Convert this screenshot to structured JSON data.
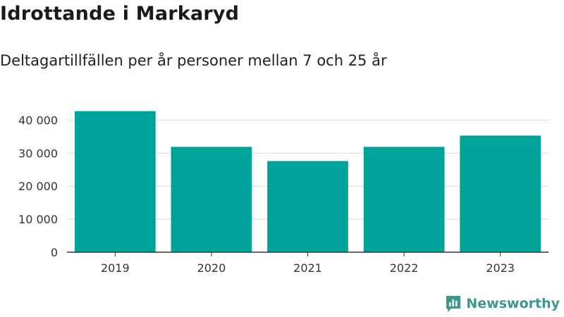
{
  "header": {
    "title": "Idrottande i Markaryd",
    "subtitle": "Deltagartillfällen per år personer mellan 7 och 25 år"
  },
  "brand": {
    "name": "Newsworthy",
    "icon": "newsworthy-logo-icon",
    "color": "#3e968c"
  },
  "colors": {
    "bar": "#00a39a",
    "grid": "#d9d9d9",
    "axis": "#333333",
    "tick_text": "#333333"
  },
  "chart_data": {
    "type": "bar",
    "title": "",
    "xlabel": "",
    "ylabel": "",
    "categories": [
      "2019",
      "2020",
      "2021",
      "2022",
      "2023"
    ],
    "values": [
      42700,
      31900,
      27600,
      31900,
      35300
    ],
    "ylim": [
      0,
      45000
    ],
    "yticks": [
      0,
      10000,
      20000,
      30000,
      40000
    ],
    "ytick_labels": [
      "0",
      "10 000",
      "20 000",
      "30 000",
      "40 000"
    ],
    "grid": true,
    "legend": "none"
  }
}
